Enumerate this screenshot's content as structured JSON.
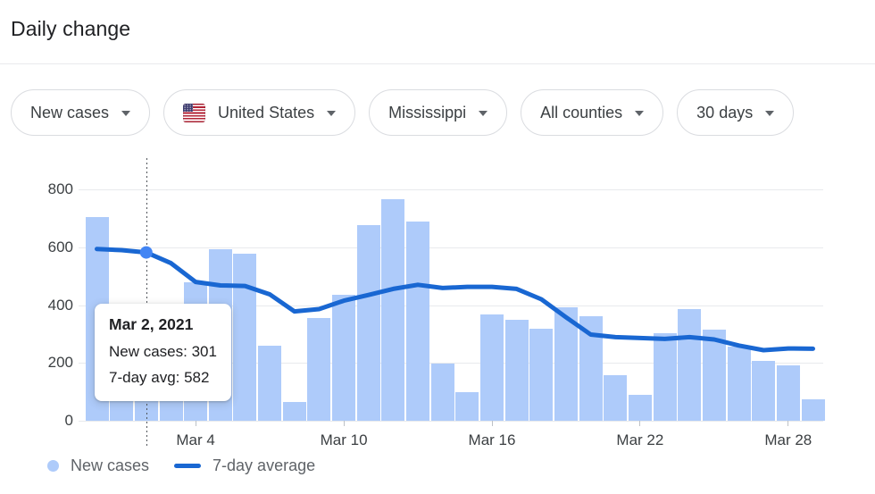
{
  "page": {
    "title": "Daily change"
  },
  "filters": [
    {
      "label": "New cases"
    },
    {
      "label": "United States",
      "flag": "us"
    },
    {
      "label": "Mississippi"
    },
    {
      "label": "All counties"
    },
    {
      "label": "30 days"
    }
  ],
  "tooltip": {
    "title": "Mar 2, 2021",
    "new_cases_line": "New cases: 301",
    "avg_line": "7-day avg: 582"
  },
  "legend": {
    "bars_label": "New cases",
    "line_label": "7-day average"
  },
  "colors": {
    "bar": "#aecbfa",
    "line": "#1967d2",
    "dot": "#4285f4",
    "grid": "#e8eaed",
    "axis_text": "#3c4043",
    "legend_text": "#5f6368"
  },
  "chart_data": {
    "type": "bar",
    "title": "Daily change",
    "x": [
      "Feb 28",
      "Mar 1",
      "Mar 2",
      "Mar 3",
      "Mar 4",
      "Mar 5",
      "Mar 6",
      "Mar 7",
      "Mar 8",
      "Mar 9",
      "Mar 10",
      "Mar 11",
      "Mar 12",
      "Mar 13",
      "Mar 14",
      "Mar 15",
      "Mar 16",
      "Mar 17",
      "Mar 18",
      "Mar 19",
      "Mar 20",
      "Mar 21",
      "Mar 22",
      "Mar 23",
      "Mar 24",
      "Mar 25",
      "Mar 26",
      "Mar 27",
      "Mar 28",
      "Mar 29"
    ],
    "series": [
      {
        "name": "New cases",
        "type": "bar",
        "color": "#aecbfa",
        "values": [
          705,
          390,
          301,
          385,
          479,
          592,
          577,
          260,
          64,
          355,
          436,
          678,
          765,
          690,
          198,
          98,
          367,
          348,
          317,
          391,
          360,
          158,
          90,
          303,
          386,
          314,
          255,
          207,
          192,
          75
        ]
      },
      {
        "name": "7-day average",
        "type": "line",
        "color": "#1967d2",
        "values": [
          594,
          590,
          582,
          545,
          480,
          468,
          466,
          437,
          378,
          386,
          415,
          435,
          456,
          470,
          459,
          463,
          463,
          456,
          420,
          358,
          298,
          289,
          286,
          283,
          289,
          281,
          260,
          244,
          250,
          249
        ]
      }
    ],
    "ylim": [
      0,
      900
    ],
    "yticks": [
      0,
      200,
      400,
      600,
      800
    ],
    "xtick_indices": [
      4,
      10,
      16,
      22,
      28
    ],
    "xtick_labels": [
      "Mar 4",
      "Mar 10",
      "Mar 16",
      "Mar 22",
      "Mar 28"
    ],
    "grid": "horizontal",
    "legend_position": "bottom",
    "highlight": {
      "index": 2,
      "date": "Mar 2, 2021",
      "new_cases": 301,
      "seven_day_avg": 582
    }
  }
}
